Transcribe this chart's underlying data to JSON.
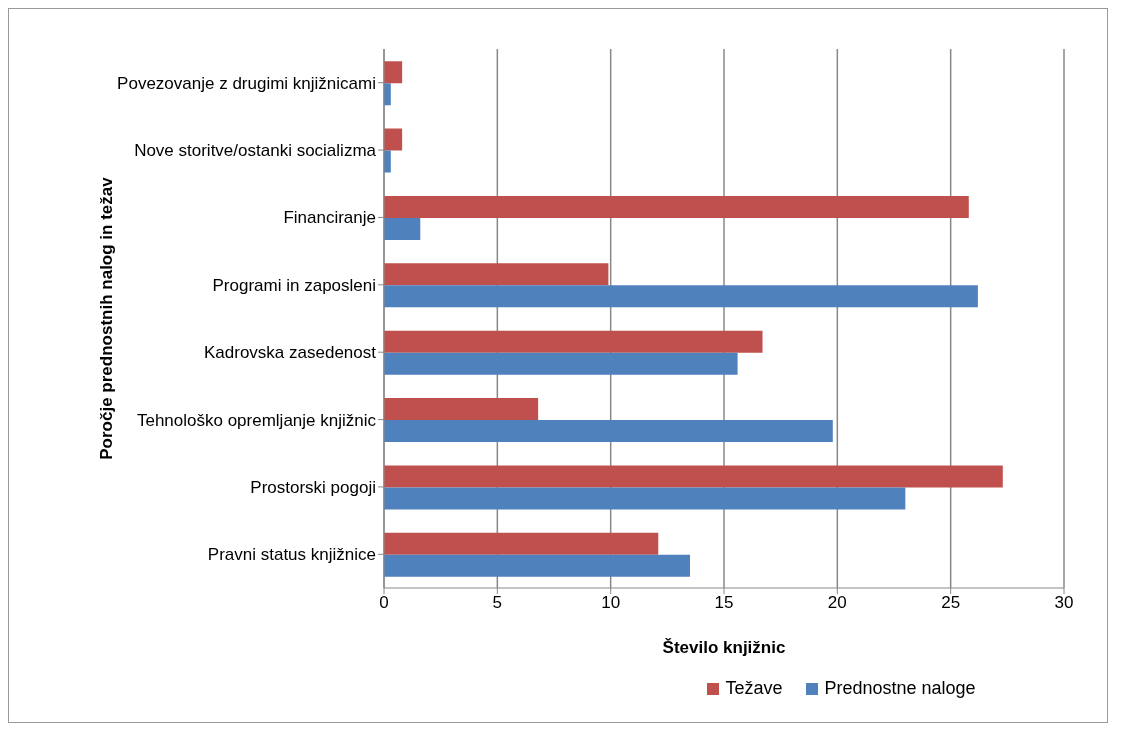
{
  "chart_data": {
    "type": "bar",
    "orientation": "horizontal",
    "xlabel": "Število knjižnic",
    "ylabel": "Poročje prednostnih nalog in težav",
    "categories": [
      "Povezovanje z drugimi knjižnicami",
      "Nove storitve/ostanki socializma",
      "Financiranje",
      "Programi in  zaposleni",
      "Kadrovska zasedenost",
      "Tehnološko opremljanje knjižnic",
      "Prostorski pogoji",
      "Pravni status knjižnice"
    ],
    "series": [
      {
        "name": "Težave",
        "color": "#c0504d",
        "values": [
          0.8,
          0.8,
          25.8,
          9.9,
          16.7,
          6.8,
          27.3,
          12.1
        ]
      },
      {
        "name": "Prednostne naloge",
        "color": "#4f81bd",
        "values": [
          0.3,
          0.3,
          1.6,
          26.2,
          15.6,
          19.8,
          23.0,
          13.5
        ]
      }
    ],
    "xlim": [
      0,
      30
    ],
    "xticks": [
      0,
      5,
      10,
      15,
      20,
      25,
      30
    ],
    "grid": "x",
    "legend": "bottom"
  }
}
